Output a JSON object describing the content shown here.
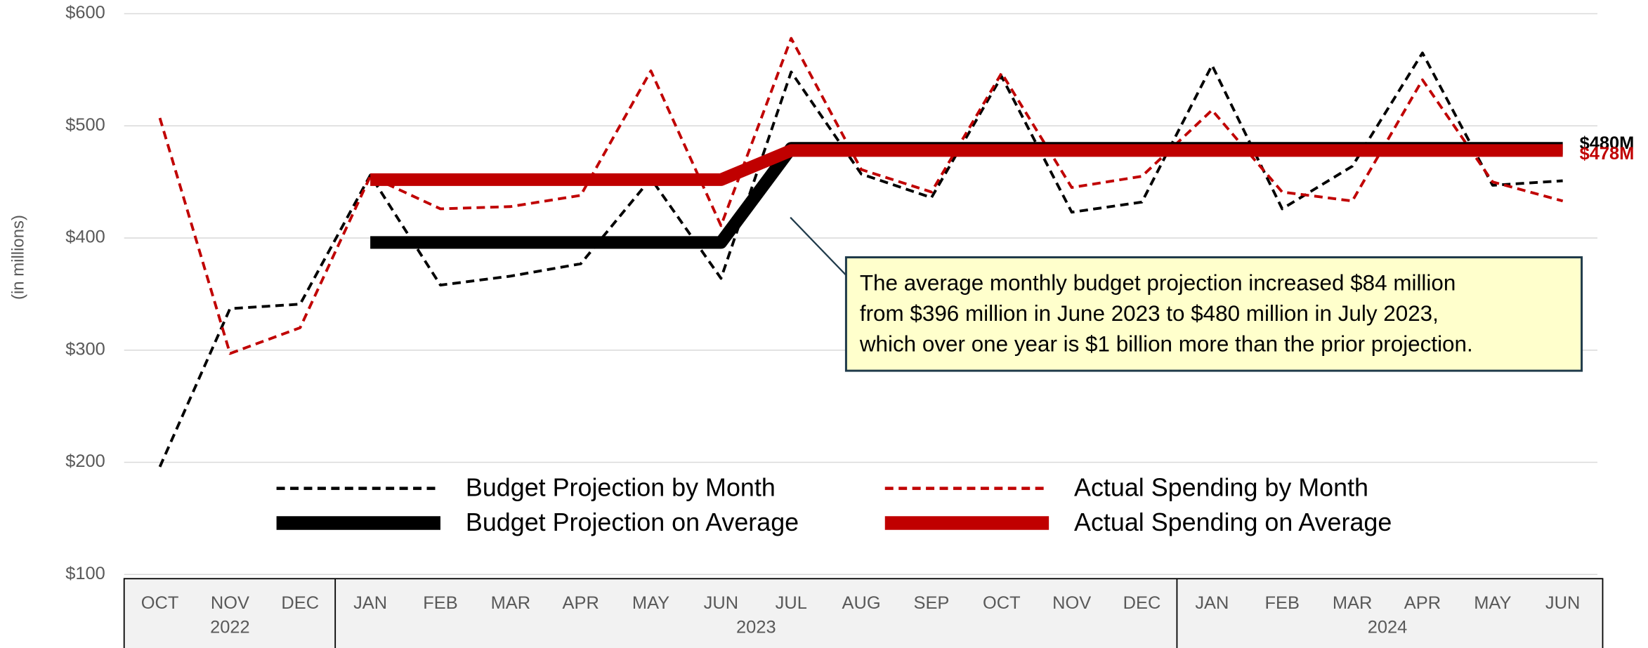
{
  "chart_data": {
    "type": "line",
    "y_axis_label": "(in millions)",
    "categories": [
      "OCT",
      "NOV",
      "DEC",
      "JAN",
      "FEB",
      "MAR",
      "APR",
      "MAY",
      "JUN",
      "JUL",
      "AUG",
      "SEP",
      "OCT",
      "NOV",
      "DEC",
      "JAN",
      "FEB",
      "MAR",
      "APR",
      "MAY",
      "JUN"
    ],
    "x_groups": [
      {
        "label": "2022",
        "count": 3
      },
      {
        "label": "2023",
        "count": 12
      },
      {
        "label": "2024",
        "count": 6
      }
    ],
    "ylim": [
      100,
      600
    ],
    "yticks": [
      {
        "value": 100,
        "label": "$100"
      },
      {
        "value": 200,
        "label": "$200"
      },
      {
        "value": 300,
        "label": "$300"
      },
      {
        "value": 400,
        "label": "$400"
      },
      {
        "value": 500,
        "label": "$500"
      },
      {
        "value": 600,
        "label": "$600"
      }
    ],
    "grid": true,
    "series": [
      {
        "name": "Budget Projection by Month",
        "color": "#000000",
        "style": "dashed",
        "values": [
          196,
          337,
          341,
          456,
          358,
          366,
          377,
          453,
          364,
          548,
          457,
          436,
          544,
          423,
          432,
          554,
          426,
          464,
          565,
          447,
          451
        ]
      },
      {
        "name": "Actual Spending by Month",
        "color": "#c00000",
        "style": "dashed",
        "values": [
          507,
          297,
          320,
          455,
          426,
          428,
          438,
          549,
          411,
          578,
          461,
          441,
          547,
          445,
          455,
          514,
          441,
          433,
          541,
          450,
          433
        ]
      },
      {
        "name": "Budget Projection on Average",
        "color": "#000000",
        "style": "thick",
        "values": [
          null,
          null,
          null,
          396,
          396,
          396,
          396,
          396,
          396,
          480,
          480,
          480,
          480,
          480,
          480,
          480,
          480,
          480,
          480,
          480,
          480
        ],
        "value_labels": [
          null,
          null,
          null,
          null,
          null,
          null,
          null,
          null,
          null,
          null,
          null,
          null,
          null,
          null,
          null,
          null,
          null,
          null,
          null,
          null,
          "$480M"
        ]
      },
      {
        "name": "Actual Spending on Average",
        "color": "#c00000",
        "style": "thick",
        "values": [
          null,
          null,
          null,
          452,
          452,
          452,
          452,
          452,
          452,
          478,
          478,
          478,
          478,
          478,
          478,
          478,
          478,
          478,
          478,
          478,
          478
        ],
        "value_labels": [
          null,
          null,
          null,
          null,
          null,
          null,
          null,
          null,
          null,
          null,
          null,
          null,
          null,
          null,
          null,
          null,
          null,
          null,
          null,
          null,
          "$478M"
        ]
      }
    ],
    "annotation": [
      "The average monthly budget projection increased $84 million",
      "from $396 million in June 2023 to $480 million in July 2023,",
      "which over one year is $1 billion more than the prior projection."
    ]
  }
}
